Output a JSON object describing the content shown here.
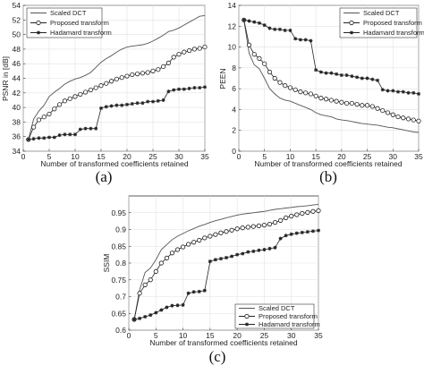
{
  "chart_data": [
    {
      "panel": "(a)",
      "type": "line",
      "xlabel": "Number of transformed coefficients retained",
      "ylabel": "PSNR in [dB]",
      "xlim": [
        0,
        35
      ],
      "ylim": [
        34,
        54
      ],
      "xticks": [
        0,
        5,
        10,
        15,
        20,
        25,
        30,
        35
      ],
      "yticks": [
        34,
        36,
        38,
        40,
        42,
        44,
        46,
        48,
        50,
        52,
        54
      ],
      "grid": true,
      "legend_position": "top-left",
      "x": [
        1,
        2,
        3,
        4,
        5,
        6,
        7,
        8,
        9,
        10,
        11,
        12,
        13,
        14,
        15,
        16,
        17,
        18,
        19,
        20,
        21,
        22,
        23,
        24,
        25,
        26,
        27,
        28,
        29,
        30,
        31,
        32,
        33,
        34,
        35
      ],
      "series": [
        {
          "name": "Scaled DCT",
          "style": "line",
          "values": [
            35.6,
            38.4,
            39.5,
            40.3,
            41.5,
            42.1,
            42.6,
            43.2,
            43.6,
            43.9,
            44.1,
            44.4,
            44.8,
            45.5,
            46.2,
            46.7,
            47.1,
            47.6,
            48.0,
            48.3,
            48.4,
            48.5,
            48.6,
            48.8,
            49.1,
            49.5,
            49.9,
            50.4,
            50.6,
            50.9,
            51.3,
            51.7,
            52.1,
            52.5,
            52.6
          ]
        },
        {
          "name": "Proposed transform",
          "style": "line-circle",
          "values": [
            35.6,
            37.3,
            38.3,
            38.7,
            39.1,
            39.8,
            40.4,
            40.9,
            41.2,
            41.5,
            41.8,
            42.1,
            42.4,
            42.7,
            43.0,
            43.3,
            43.6,
            43.9,
            44.1,
            44.3,
            44.5,
            44.6,
            44.7,
            44.8,
            45.0,
            45.2,
            45.6,
            46.1,
            46.9,
            47.3,
            47.6,
            47.8,
            48.0,
            48.1,
            48.3
          ]
        },
        {
          "name": "Hadamard transform",
          "style": "line-star",
          "values": [
            35.6,
            35.7,
            35.8,
            35.8,
            35.9,
            35.9,
            36.2,
            36.3,
            36.3,
            36.3,
            37.0,
            37.1,
            37.1,
            37.1,
            39.9,
            40.1,
            40.2,
            40.3,
            40.3,
            40.4,
            40.5,
            40.6,
            40.6,
            40.8,
            40.8,
            40.9,
            41.0,
            42.2,
            42.4,
            42.5,
            42.5,
            42.6,
            42.7,
            42.7,
            42.8
          ]
        }
      ]
    },
    {
      "panel": "(b)",
      "type": "line",
      "xlabel": "Number of transformed coefficients retained",
      "ylabel": "PEEN",
      "xlim": [
        0,
        35
      ],
      "ylim": [
        0,
        14
      ],
      "xticks": [
        0,
        5,
        10,
        15,
        20,
        25,
        30,
        35
      ],
      "yticks": [
        0,
        2,
        4,
        6,
        8,
        10,
        12,
        14
      ],
      "grid": true,
      "legend_position": "top-right",
      "x": [
        1,
        2,
        3,
        4,
        5,
        6,
        7,
        8,
        9,
        10,
        11,
        12,
        13,
        14,
        15,
        16,
        17,
        18,
        19,
        20,
        21,
        22,
        23,
        24,
        25,
        26,
        27,
        28,
        29,
        30,
        31,
        32,
        33,
        34,
        35
      ],
      "series": [
        {
          "name": "Scaled DCT",
          "style": "line",
          "values": [
            12.6,
            9.4,
            8.3,
            7.9,
            7.0,
            6.0,
            5.5,
            5.1,
            4.9,
            4.8,
            4.6,
            4.4,
            4.2,
            4.0,
            3.7,
            3.5,
            3.4,
            3.3,
            3.1,
            3.0,
            2.95,
            2.85,
            2.75,
            2.65,
            2.6,
            2.55,
            2.5,
            2.4,
            2.3,
            2.25,
            2.15,
            2.05,
            1.95,
            1.85,
            1.8
          ]
        },
        {
          "name": "Proposed transform",
          "style": "line-circle",
          "values": [
            12.6,
            10.2,
            9.3,
            8.9,
            8.4,
            7.6,
            7.0,
            6.6,
            6.3,
            6.1,
            5.9,
            5.7,
            5.6,
            5.5,
            5.3,
            5.1,
            5.0,
            4.9,
            4.8,
            4.7,
            4.6,
            4.6,
            4.5,
            4.4,
            4.4,
            4.3,
            4.1,
            3.9,
            3.7,
            3.5,
            3.3,
            3.2,
            3.1,
            3.0,
            2.9
          ]
        },
        {
          "name": "Hadamard transform",
          "style": "line-star",
          "values": [
            12.6,
            12.5,
            12.4,
            12.3,
            12.1,
            11.8,
            11.7,
            11.7,
            11.6,
            11.6,
            10.8,
            10.7,
            10.7,
            10.6,
            7.8,
            7.6,
            7.5,
            7.5,
            7.4,
            7.3,
            7.3,
            7.2,
            7.1,
            7.0,
            7.0,
            6.9,
            6.8,
            5.9,
            5.8,
            5.8,
            5.7,
            5.7,
            5.6,
            5.6,
            5.5
          ]
        }
      ]
    },
    {
      "panel": "(c)",
      "type": "line",
      "xlabel": "Number of transformed coefficients retained",
      "ylabel": "SSIM",
      "xlim": [
        0,
        35
      ],
      "ylim": [
        0.6,
        1.0
      ],
      "xticks": [
        0,
        5,
        10,
        15,
        20,
        25,
        30,
        35
      ],
      "yticks": [
        0.6,
        0.65,
        0.7,
        0.75,
        0.8,
        0.85,
        0.9,
        0.95
      ],
      "ytick_labels": [
        "0.6",
        "0.65",
        "0.7",
        "0.75",
        "0.8",
        "0.85",
        "0.9",
        "0.95"
      ],
      "grid": true,
      "legend_position": "bottom-right",
      "x": [
        1,
        2,
        3,
        4,
        5,
        6,
        7,
        8,
        9,
        10,
        11,
        12,
        13,
        14,
        15,
        16,
        17,
        18,
        19,
        20,
        21,
        22,
        23,
        24,
        25,
        26,
        27,
        28,
        29,
        30,
        31,
        32,
        33,
        34,
        35
      ],
      "series": [
        {
          "name": "Scaled DCT",
          "style": "line",
          "values": [
            0.632,
            0.72,
            0.772,
            0.785,
            0.81,
            0.84,
            0.855,
            0.87,
            0.88,
            0.888,
            0.896,
            0.903,
            0.91,
            0.915,
            0.921,
            0.926,
            0.93,
            0.935,
            0.939,
            0.943,
            0.946,
            0.948,
            0.95,
            0.952,
            0.954,
            0.957,
            0.96,
            0.962,
            0.964,
            0.966,
            0.968,
            0.969,
            0.971,
            0.973,
            0.975
          ]
        },
        {
          "name": "Proposed transform",
          "style": "line-circle",
          "values": [
            0.632,
            0.71,
            0.735,
            0.75,
            0.775,
            0.8,
            0.815,
            0.83,
            0.84,
            0.848,
            0.856,
            0.862,
            0.868,
            0.875,
            0.88,
            0.885,
            0.89,
            0.894,
            0.898,
            0.902,
            0.905,
            0.907,
            0.909,
            0.911,
            0.913,
            0.916,
            0.921,
            0.927,
            0.935,
            0.94,
            0.944,
            0.948,
            0.951,
            0.954,
            0.956
          ]
        },
        {
          "name": "Hadamard transform",
          "style": "line-star",
          "values": [
            0.632,
            0.635,
            0.64,
            0.645,
            0.652,
            0.66,
            0.668,
            0.673,
            0.674,
            0.675,
            0.71,
            0.714,
            0.715,
            0.718,
            0.805,
            0.81,
            0.813,
            0.816,
            0.82,
            0.825,
            0.828,
            0.833,
            0.835,
            0.838,
            0.84,
            0.843,
            0.846,
            0.873,
            0.882,
            0.886,
            0.889,
            0.891,
            0.893,
            0.895,
            0.897
          ]
        }
      ]
    }
  ]
}
